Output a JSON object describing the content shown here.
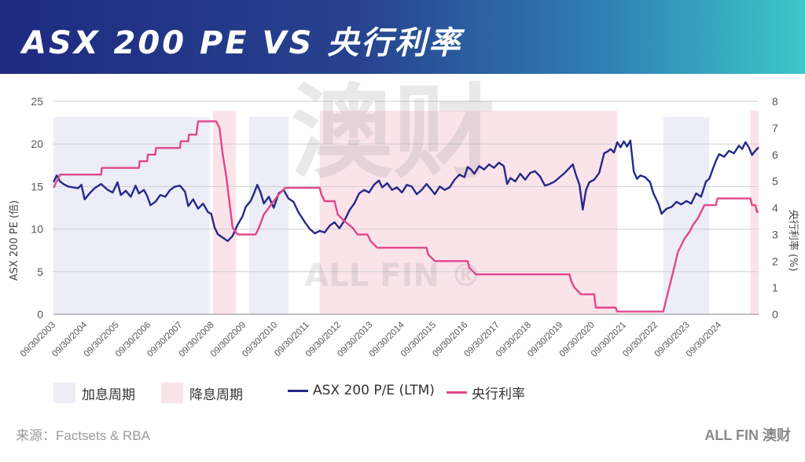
{
  "header": {
    "title": "ASX 200 PE  VS 央行利率"
  },
  "footer": {
    "source": "来源：Factsets & RBA",
    "brand": "ALL FIN 澳财"
  },
  "colors": {
    "pe_line": "#25288a",
    "rate_line": "#e0468b",
    "hike_fill": "#ecedf6",
    "cut_fill": "#fbe3ea"
  },
  "chart_data": {
    "type": "line",
    "ylabel_left": "ASX 200 PE (倍)",
    "ylabel_right": "央行利率 (%)",
    "ylim_left": [
      0,
      25
    ],
    "ylim_right": [
      0,
      8
    ],
    "yticks_left": [
      "0",
      "5",
      "10",
      "15",
      "20",
      "25"
    ],
    "yticks_right": [
      "0",
      "1",
      "2",
      "3",
      "4",
      "5",
      "6",
      "7",
      "8"
    ],
    "xlim": [
      2003.75,
      2025.2
    ],
    "xticks": [
      "09/30/2003",
      "09/30/2004",
      "09/30/2005",
      "09/30/2006",
      "09/30/2007",
      "09/30/2008",
      "09/30/2009",
      "09/30/2010",
      "09/30/2011",
      "09/30/2012",
      "09/30/2013",
      "09/30/2014",
      "09/30/2015",
      "09/30/2016",
      "09/30/2017",
      "09/30/2018",
      "09/30/2019",
      "09/30/2020",
      "09/30/2021",
      "09/30/2022",
      "09/30/2023",
      "09/30/2024"
    ],
    "legend": [
      {
        "kind": "box",
        "key": "hike",
        "label": "加息周期"
      },
      {
        "kind": "box",
        "key": "cut",
        "label": "降息周期"
      },
      {
        "kind": "line",
        "key": "pe",
        "label": "ASX 200 P/E (LTM)"
      },
      {
        "kind": "line",
        "key": "rate",
        "label": "央行利率"
      }
    ],
    "periods": [
      {
        "type": "hike",
        "start": 2003.75,
        "end": 2008.5
      },
      {
        "type": "cut",
        "start": 2008.6,
        "end": 2009.3
      },
      {
        "type": "hike",
        "start": 2009.7,
        "end": 2010.9
      },
      {
        "type": "cut",
        "start": 2011.85,
        "end": 2020.9
      },
      {
        "type": "hike",
        "start": 2022.3,
        "end": 2023.7
      },
      {
        "type": "cut",
        "start": 2024.95,
        "end": 2025.2
      }
    ],
    "series": [
      {
        "name": "ASX 200 P/E (LTM)",
        "axis": "left",
        "points": [
          [
            2003.75,
            15.5
          ],
          [
            2003.85,
            16.3
          ],
          [
            2003.95,
            15.6
          ],
          [
            2004.05,
            15.3
          ],
          [
            2004.2,
            15.0
          ],
          [
            2004.35,
            14.9
          ],
          [
            2004.5,
            14.8
          ],
          [
            2004.6,
            15.2
          ],
          [
            2004.7,
            13.5
          ],
          [
            2004.85,
            14.2
          ],
          [
            2005.0,
            14.8
          ],
          [
            2005.2,
            15.3
          ],
          [
            2005.4,
            14.6
          ],
          [
            2005.55,
            14.3
          ],
          [
            2005.7,
            15.5
          ],
          [
            2005.8,
            14.0
          ],
          [
            2005.95,
            14.5
          ],
          [
            2006.1,
            13.8
          ],
          [
            2006.25,
            15.1
          ],
          [
            2006.35,
            14.2
          ],
          [
            2006.5,
            14.6
          ],
          [
            2006.6,
            13.9
          ],
          [
            2006.7,
            12.8
          ],
          [
            2006.85,
            13.2
          ],
          [
            2007.0,
            14.0
          ],
          [
            2007.15,
            13.8
          ],
          [
            2007.3,
            14.6
          ],
          [
            2007.45,
            15.0
          ],
          [
            2007.6,
            15.1
          ],
          [
            2007.75,
            14.4
          ],
          [
            2007.85,
            12.7
          ],
          [
            2008.0,
            13.5
          ],
          [
            2008.15,
            12.4
          ],
          [
            2008.3,
            13.0
          ],
          [
            2008.45,
            12.0
          ],
          [
            2008.55,
            11.8
          ],
          [
            2008.65,
            10.2
          ],
          [
            2008.75,
            9.4
          ],
          [
            2008.9,
            9.0
          ],
          [
            2009.05,
            8.6
          ],
          [
            2009.2,
            9.2
          ],
          [
            2009.35,
            10.5
          ],
          [
            2009.5,
            11.5
          ],
          [
            2009.6,
            12.6
          ],
          [
            2009.75,
            13.3
          ],
          [
            2009.85,
            14.2
          ],
          [
            2009.95,
            15.2
          ],
          [
            2010.05,
            14.3
          ],
          [
            2010.15,
            13.0
          ],
          [
            2010.3,
            13.8
          ],
          [
            2010.45,
            12.5
          ],
          [
            2010.6,
            14.2
          ],
          [
            2010.75,
            14.6
          ],
          [
            2010.9,
            13.6
          ],
          [
            2011.05,
            13.2
          ],
          [
            2011.2,
            12.0
          ],
          [
            2011.4,
            10.8
          ],
          [
            2011.55,
            10.0
          ],
          [
            2011.7,
            9.5
          ],
          [
            2011.85,
            9.8
          ],
          [
            2012.0,
            9.6
          ],
          [
            2012.15,
            10.4
          ],
          [
            2012.3,
            10.8
          ],
          [
            2012.45,
            10.1
          ],
          [
            2012.6,
            11.0
          ],
          [
            2012.75,
            12.2
          ],
          [
            2012.9,
            13.0
          ],
          [
            2013.05,
            14.2
          ],
          [
            2013.2,
            14.6
          ],
          [
            2013.35,
            14.3
          ],
          [
            2013.5,
            15.2
          ],
          [
            2013.65,
            15.7
          ],
          [
            2013.75,
            14.9
          ],
          [
            2013.9,
            15.4
          ],
          [
            2014.05,
            14.6
          ],
          [
            2014.2,
            14.9
          ],
          [
            2014.35,
            14.3
          ],
          [
            2014.5,
            15.2
          ],
          [
            2014.65,
            15.0
          ],
          [
            2014.8,
            14.1
          ],
          [
            2014.95,
            14.6
          ],
          [
            2015.1,
            15.3
          ],
          [
            2015.25,
            14.6
          ],
          [
            2015.35,
            14.1
          ],
          [
            2015.5,
            15.0
          ],
          [
            2015.65,
            14.6
          ],
          [
            2015.8,
            14.9
          ],
          [
            2015.95,
            15.8
          ],
          [
            2016.1,
            16.4
          ],
          [
            2016.25,
            16.1
          ],
          [
            2016.35,
            17.3
          ],
          [
            2016.45,
            17.0
          ],
          [
            2016.55,
            16.5
          ],
          [
            2016.7,
            17.4
          ],
          [
            2016.85,
            17.0
          ],
          [
            2017.0,
            17.6
          ],
          [
            2017.15,
            17.2
          ],
          [
            2017.3,
            17.8
          ],
          [
            2017.45,
            17.4
          ],
          [
            2017.55,
            15.3
          ],
          [
            2017.65,
            16.0
          ],
          [
            2017.8,
            15.6
          ],
          [
            2017.95,
            16.5
          ],
          [
            2018.1,
            15.8
          ],
          [
            2018.25,
            16.6
          ],
          [
            2018.4,
            16.8
          ],
          [
            2018.55,
            16.2
          ],
          [
            2018.7,
            15.1
          ],
          [
            2018.85,
            15.3
          ],
          [
            2019.0,
            15.6
          ],
          [
            2019.15,
            16.1
          ],
          [
            2019.3,
            16.6
          ],
          [
            2019.45,
            17.2
          ],
          [
            2019.55,
            17.6
          ],
          [
            2019.65,
            16.3
          ],
          [
            2019.75,
            15.2
          ],
          [
            2019.85,
            12.3
          ],
          [
            2019.95,
            14.6
          ],
          [
            2020.05,
            15.5
          ],
          [
            2020.2,
            15.8
          ],
          [
            2020.35,
            16.6
          ],
          [
            2020.5,
            18.9
          ],
          [
            2020.6,
            19.1
          ],
          [
            2020.7,
            19.4
          ],
          [
            2020.8,
            19.0
          ],
          [
            2020.9,
            20.2
          ],
          [
            2021.0,
            19.6
          ],
          [
            2021.1,
            20.3
          ],
          [
            2021.2,
            19.7
          ],
          [
            2021.3,
            20.4
          ],
          [
            2021.4,
            16.8
          ],
          [
            2021.5,
            15.9
          ],
          [
            2021.6,
            16.3
          ],
          [
            2021.75,
            16.1
          ],
          [
            2021.9,
            15.5
          ],
          [
            2022.0,
            14.2
          ],
          [
            2022.15,
            13.0
          ],
          [
            2022.25,
            11.8
          ],
          [
            2022.4,
            12.4
          ],
          [
            2022.55,
            12.6
          ],
          [
            2022.7,
            13.2
          ],
          [
            2022.85,
            12.9
          ],
          [
            2023.0,
            13.3
          ],
          [
            2023.15,
            13.0
          ],
          [
            2023.3,
            14.2
          ],
          [
            2023.45,
            13.8
          ],
          [
            2023.6,
            15.6
          ],
          [
            2023.7,
            15.9
          ],
          [
            2023.8,
            17.0
          ],
          [
            2023.9,
            18.0
          ],
          [
            2024.0,
            18.8
          ],
          [
            2024.15,
            18.5
          ],
          [
            2024.3,
            19.2
          ],
          [
            2024.45,
            18.9
          ],
          [
            2024.6,
            19.8
          ],
          [
            2024.7,
            19.4
          ],
          [
            2024.8,
            20.2
          ],
          [
            2024.9,
            19.6
          ],
          [
            2025.0,
            18.7
          ],
          [
            2025.1,
            19.2
          ],
          [
            2025.2,
            19.6
          ]
        ]
      },
      {
        "name": "央行利率",
        "axis": "right",
        "points": [
          [
            2003.75,
            4.75
          ],
          [
            2003.85,
            5.0
          ],
          [
            2003.95,
            5.25
          ],
          [
            2005.2,
            5.25
          ],
          [
            2005.22,
            5.5
          ],
          [
            2006.35,
            5.5
          ],
          [
            2006.37,
            5.75
          ],
          [
            2006.6,
            5.75
          ],
          [
            2006.62,
            6.0
          ],
          [
            2006.85,
            6.0
          ],
          [
            2006.87,
            6.25
          ],
          [
            2007.6,
            6.25
          ],
          [
            2007.62,
            6.5
          ],
          [
            2007.85,
            6.5
          ],
          [
            2007.87,
            6.75
          ],
          [
            2008.1,
            6.75
          ],
          [
            2008.12,
            7.0
          ],
          [
            2008.15,
            7.25
          ],
          [
            2008.7,
            7.25
          ],
          [
            2008.8,
            7.0
          ],
          [
            2008.9,
            6.0
          ],
          [
            2009.0,
            5.25
          ],
          [
            2009.1,
            4.25
          ],
          [
            2009.2,
            3.25
          ],
          [
            2009.35,
            3.0
          ],
          [
            2009.9,
            3.0
          ],
          [
            2010.0,
            3.25
          ],
          [
            2010.15,
            3.75
          ],
          [
            2010.3,
            4.0
          ],
          [
            2010.45,
            4.25
          ],
          [
            2010.6,
            4.5
          ],
          [
            2010.8,
            4.75
          ],
          [
            2011.85,
            4.75
          ],
          [
            2011.9,
            4.5
          ],
          [
            2012.0,
            4.25
          ],
          [
            2012.3,
            4.25
          ],
          [
            2012.4,
            3.75
          ],
          [
            2012.6,
            3.5
          ],
          [
            2012.85,
            3.25
          ],
          [
            2013.0,
            3.0
          ],
          [
            2013.3,
            3.0
          ],
          [
            2013.4,
            2.75
          ],
          [
            2013.6,
            2.5
          ],
          [
            2015.1,
            2.5
          ],
          [
            2015.15,
            2.25
          ],
          [
            2015.35,
            2.0
          ],
          [
            2016.35,
            2.0
          ],
          [
            2016.4,
            1.75
          ],
          [
            2016.6,
            1.5
          ],
          [
            2019.45,
            1.5
          ],
          [
            2019.5,
            1.25
          ],
          [
            2019.6,
            1.0
          ],
          [
            2019.8,
            0.75
          ],
          [
            2020.2,
            0.75
          ],
          [
            2020.22,
            0.5
          ],
          [
            2020.25,
            0.25
          ],
          [
            2020.85,
            0.25
          ],
          [
            2020.9,
            0.1
          ],
          [
            2022.3,
            0.1
          ],
          [
            2022.35,
            0.35
          ],
          [
            2022.45,
            0.85
          ],
          [
            2022.55,
            1.35
          ],
          [
            2022.65,
            1.85
          ],
          [
            2022.75,
            2.35
          ],
          [
            2022.85,
            2.6
          ],
          [
            2022.95,
            2.85
          ],
          [
            2023.1,
            3.1
          ],
          [
            2023.2,
            3.35
          ],
          [
            2023.35,
            3.6
          ],
          [
            2023.45,
            3.85
          ],
          [
            2023.55,
            4.1
          ],
          [
            2023.9,
            4.1
          ],
          [
            2023.95,
            4.35
          ],
          [
            2024.95,
            4.35
          ],
          [
            2025.0,
            4.1
          ],
          [
            2025.1,
            4.1
          ],
          [
            2025.15,
            3.85
          ],
          [
            2025.2,
            3.85
          ]
        ]
      }
    ]
  }
}
